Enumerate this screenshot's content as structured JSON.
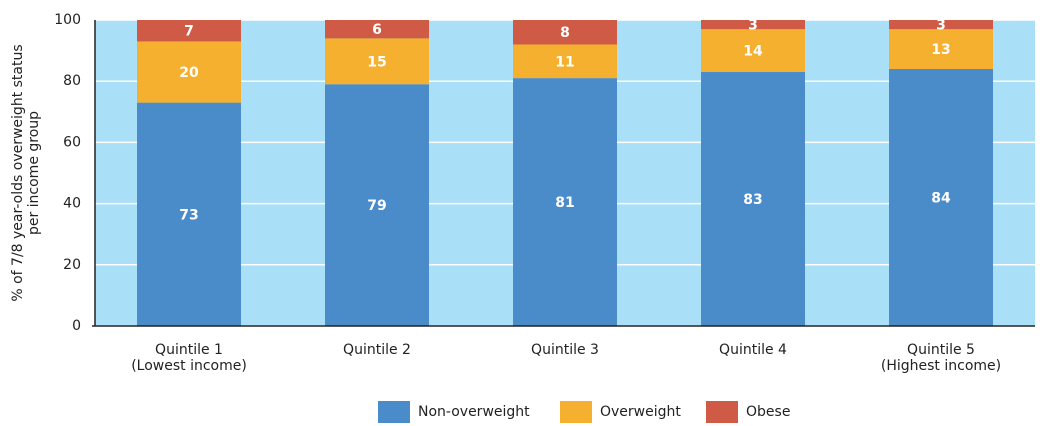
{
  "chart_data": {
    "type": "stacked_bar",
    "ylabel": [
      "% of 7/8 year-olds overweight status",
      "per income group"
    ],
    "categories": [
      [
        "Quintile 1",
        "(Lowest income)"
      ],
      [
        "Quintile 2"
      ],
      [
        "Quintile 3"
      ],
      [
        "Quintile 4"
      ],
      [
        "Quintile 5",
        "(Highest income)"
      ]
    ],
    "series": [
      {
        "name": "Non-overweight",
        "color": "#4a8bca",
        "values": [
          73,
          79,
          81,
          83,
          84
        ]
      },
      {
        "name": "Overweight",
        "color": "#f5b02f",
        "values": [
          20,
          15,
          11,
          14,
          13
        ]
      },
      {
        "name": "Obese",
        "color": "#cf5a45",
        "values": [
          7,
          6,
          8,
          3,
          3
        ]
      }
    ],
    "ylim": [
      0,
      100
    ],
    "yticks": [
      0,
      20,
      40,
      60,
      80,
      100
    ],
    "grid": true,
    "background": "#aadff8"
  }
}
